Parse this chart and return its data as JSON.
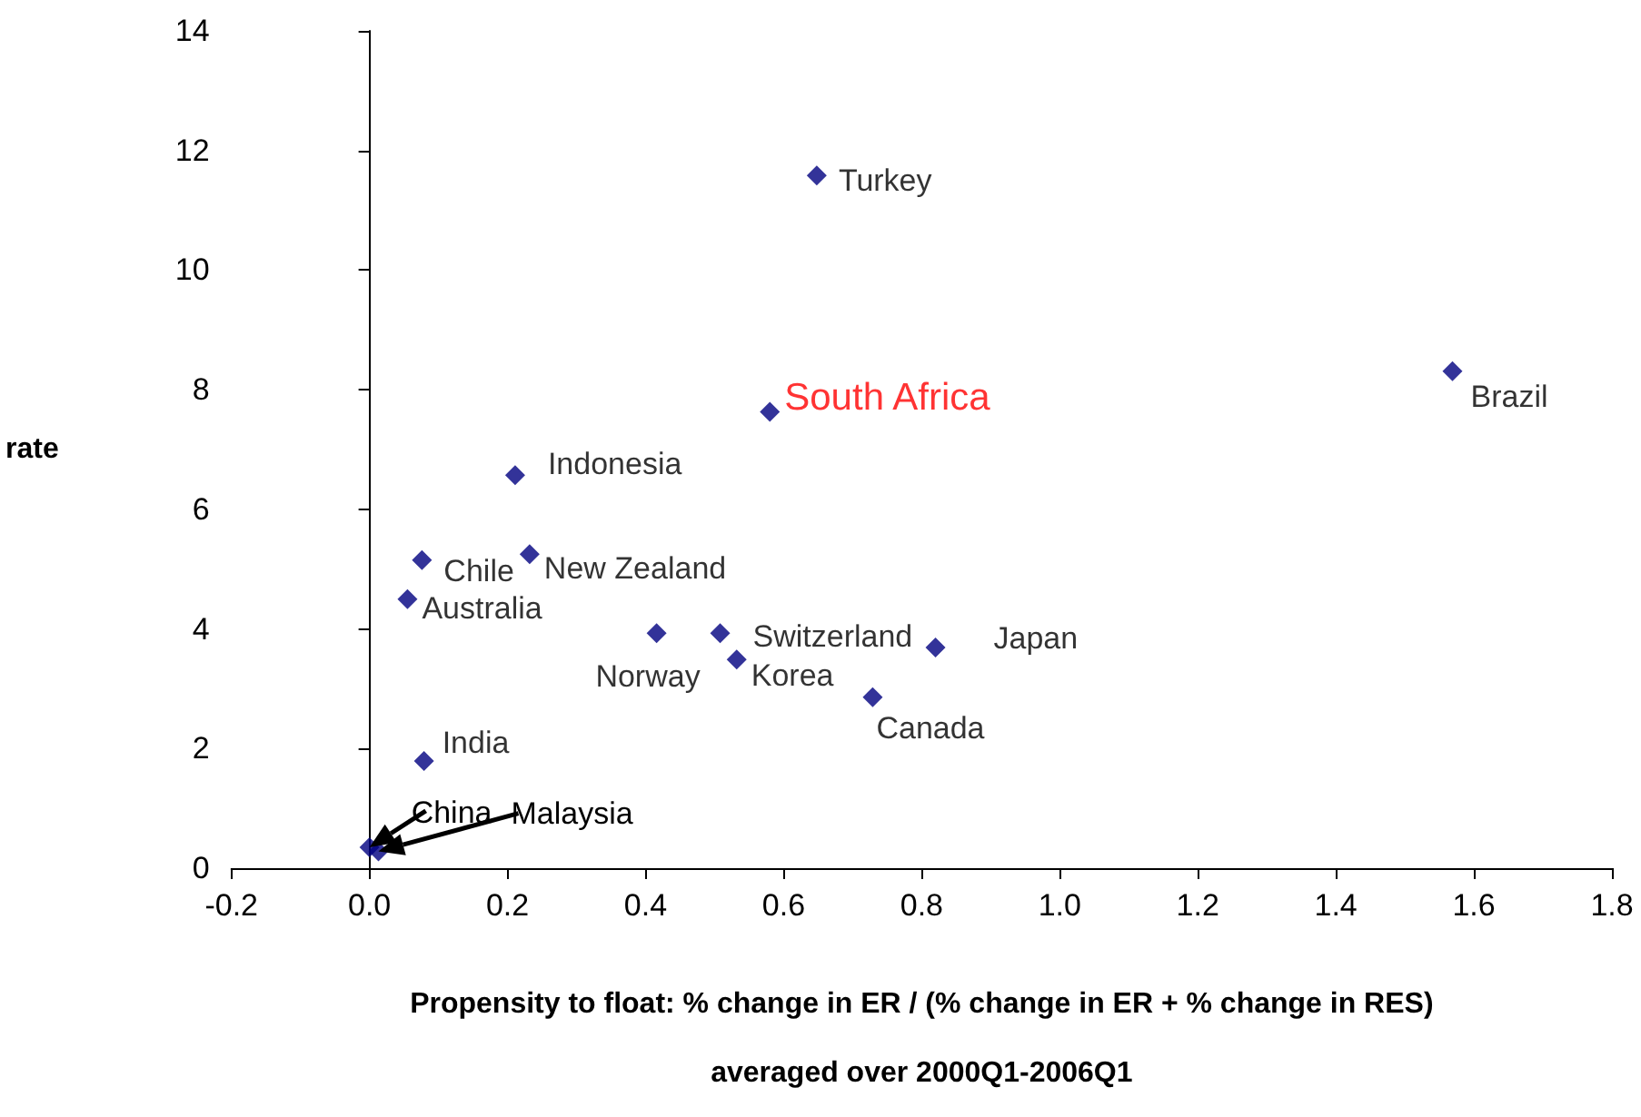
{
  "chart_data": {
    "type": "scatter",
    "xlabel": "Propensity to float: % change in ER / (% change in ER + % change in RES)\naveraged over 2000Q1-2006Q1",
    "ylabel": "rate",
    "series": [
      {
        "color": "#000080",
        "x": [
          0.648,
          1.569,
          0.58,
          0.211,
          0.076,
          0.232,
          0.055,
          0.416,
          0.508,
          0.532,
          0.82,
          0.729,
          0.079,
          0.0,
          0.013
        ],
        "values": [
          11.58,
          8.31,
          7.63,
          6.57,
          5.15,
          5.25,
          4.5,
          3.93,
          3.93,
          3.49,
          3.69,
          2.86,
          1.79,
          0.35,
          0.28
        ]
      }
    ],
    "annotations": [
      {
        "text": "Turkey",
        "x": 0.648,
        "y": 11.58
      },
      {
        "text": "Brazil",
        "x": 1.569,
        "y": 8.31
      },
      {
        "text": "South Africa",
        "x": 0.58,
        "y": 7.63
      },
      {
        "text": "Indonesia",
        "x": 0.211,
        "y": 6.57
      },
      {
        "text": "Chile",
        "x": 0.076,
        "y": 5.15
      },
      {
        "text": "New Zealand",
        "x": 0.232,
        "y": 5.25
      },
      {
        "text": "Australia",
        "x": 0.055,
        "y": 4.5
      },
      {
        "text": "Norway",
        "x": 0.416,
        "y": 3.93
      },
      {
        "text": "Switzerland",
        "x": 0.508,
        "y": 3.93
      },
      {
        "text": "Korea",
        "x": 0.532,
        "y": 3.49
      },
      {
        "text": "Japan",
        "x": 0.82,
        "y": 3.69
      },
      {
        "text": "Canada",
        "x": 0.729,
        "y": 2.86
      },
      {
        "text": "India",
        "x": 0.079,
        "y": 1.79
      },
      "China",
      "Malaysia"
    ],
    "xlim": [
      -0.2,
      1.8
    ],
    "xticks": [
      -0.2,
      {
        "value": 0,
        "label": "0.0"
      },
      0.2,
      0.4,
      0.6,
      0.8,
      {
        "value": 1,
        "label": "1.0"
      },
      1.2,
      1.4,
      1.6,
      1.8
    ],
    "ylim": [
      0,
      14
    ],
    "yticks": [
      0,
      2,
      4,
      6,
      8,
      10,
      12,
      14
    ],
    "marker": "diamond"
  }
}
